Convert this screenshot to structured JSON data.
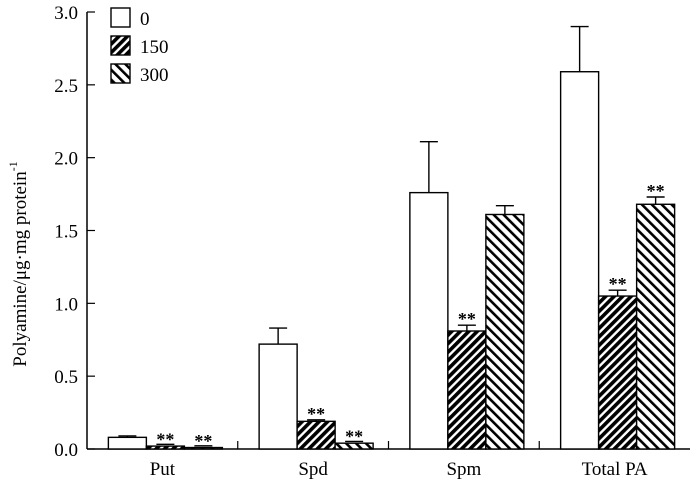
{
  "chart_data": {
    "type": "bar",
    "title": "",
    "xlabel": "",
    "ylabel": "Polyamine/μg·mg protein",
    "ylabel_superscript": "-1",
    "ylim": [
      0,
      3.0
    ],
    "yticks": [
      "0.0",
      "0.5",
      "1.0",
      "1.5",
      "2.0",
      "2.5",
      "3.0"
    ],
    "categories": [
      "Put",
      "Spd",
      "Spm",
      "Total PA"
    ],
    "legend_position": "top-left",
    "significance_mark": "**",
    "series": [
      {
        "name": "0",
        "pattern": "none",
        "values": [
          0.08,
          0.72,
          1.76,
          2.59
        ],
        "errors": [
          0.01,
          0.11,
          0.35,
          0.31
        ],
        "significant": [
          false,
          false,
          false,
          false
        ]
      },
      {
        "name": "150",
        "pattern": "backslash-dense",
        "values": [
          0.02,
          0.19,
          0.81,
          1.05
        ],
        "errors": [
          0.005,
          0.01,
          0.04,
          0.04
        ],
        "significant": [
          true,
          true,
          true,
          true
        ]
      },
      {
        "name": "300",
        "pattern": "slash",
        "values": [
          0.01,
          0.04,
          1.61,
          1.68
        ],
        "errors": [
          0.005,
          0.005,
          0.06,
          0.05
        ],
        "significant": [
          true,
          true,
          false,
          true
        ]
      }
    ]
  }
}
